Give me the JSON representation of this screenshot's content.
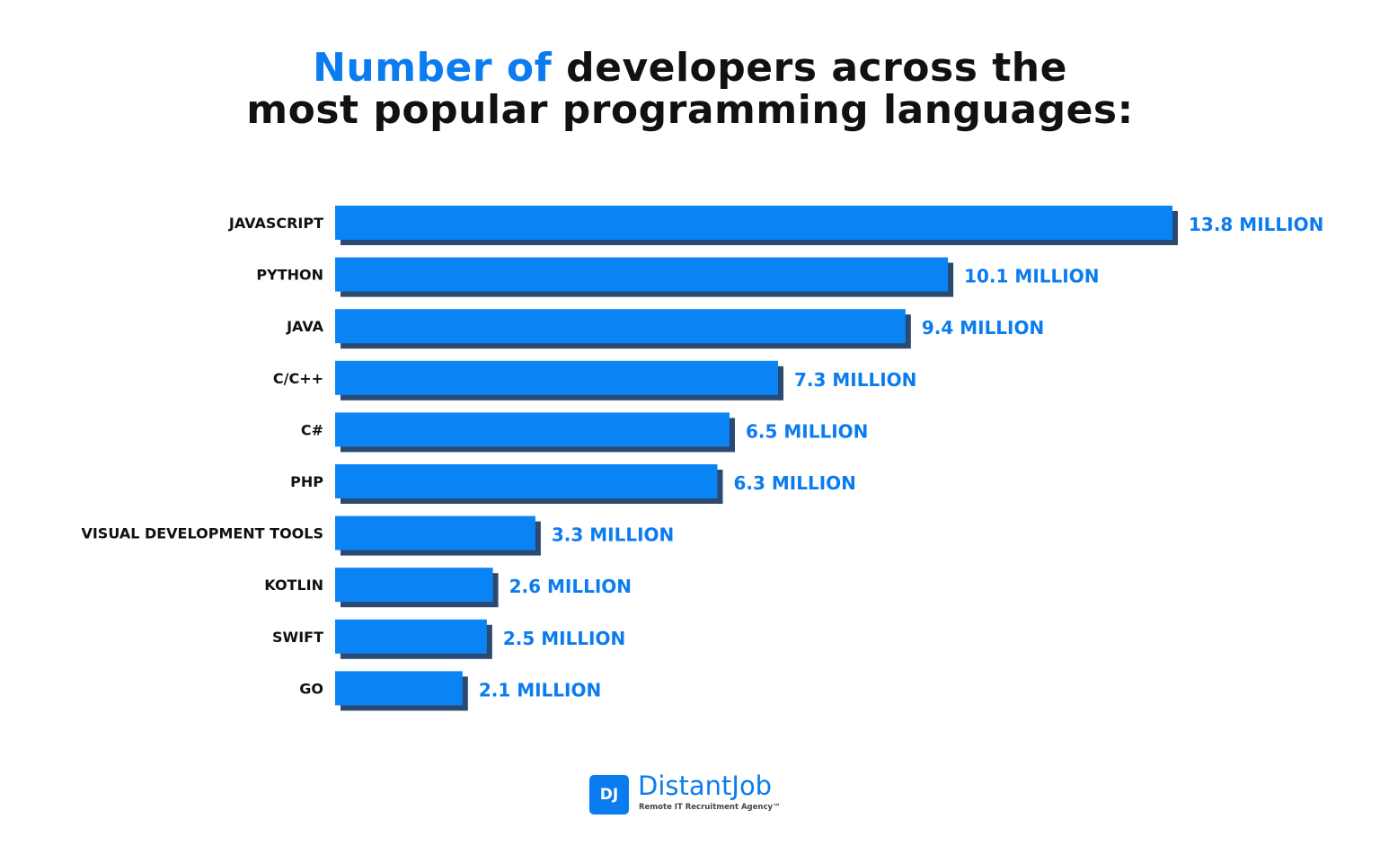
{
  "title": {
    "accent": "Number of",
    "rest_line1": " developers across the",
    "line2": "most popular programming languages:"
  },
  "colors": {
    "bar": "#0a84f5",
    "bar_shadow": "#2b4a72",
    "value_label": "#0a7cf0",
    "accent": "#0a7cf0"
  },
  "chart_data": {
    "type": "bar",
    "orientation": "horizontal",
    "title": "Number of developers across the most popular programming languages:",
    "categories": [
      "JAVASCRIPT",
      "PYTHON",
      "JAVA",
      "C/C++",
      "C#",
      "PHP",
      "VISUAL DEVELOPMENT TOOLS",
      "KOTLIN",
      "SWIFT",
      "GO"
    ],
    "values": [
      13.8,
      10.1,
      9.4,
      7.3,
      6.5,
      6.3,
      3.3,
      2.6,
      2.5,
      2.1
    ],
    "value_labels": [
      "13.8 MILLION",
      "10.1 MILLION",
      "9.4 MILLION",
      "7.3 MILLION",
      "6.5 MILLION",
      "6.3 MILLION",
      "3.3 MILLION",
      "2.6 MILLION",
      "2.5 MILLION",
      "2.1 MILLION"
    ],
    "unit": "million",
    "grid": false,
    "axes_visible": false
  },
  "logo": {
    "mark": "DJ",
    "name": "DistantJob",
    "tagline": "Remote IT Recruitment Agency™"
  }
}
